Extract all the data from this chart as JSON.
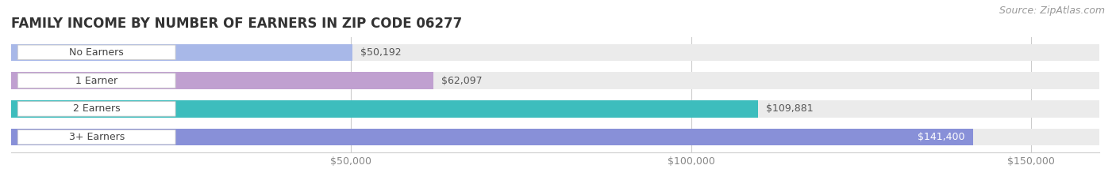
{
  "title": "FAMILY INCOME BY NUMBER OF EARNERS IN ZIP CODE 06277",
  "source": "Source: ZipAtlas.com",
  "categories": [
    "No Earners",
    "1 Earner",
    "2 Earners",
    "3+ Earners"
  ],
  "values": [
    50192,
    62097,
    109881,
    141400
  ],
  "bar_colors": [
    "#a8b8e8",
    "#c0a0d0",
    "#3dbdbd",
    "#8890d8"
  ],
  "bar_bg_color": "#ebebeb",
  "value_labels": [
    "$50,192",
    "$62,097",
    "$109,881",
    "$141,400"
  ],
  "xlim_max": 160000,
  "xticks": [
    50000,
    100000,
    150000
  ],
  "xtick_labels": [
    "$50,000",
    "$100,000",
    "$150,000"
  ],
  "background_color": "#ffffff",
  "title_fontsize": 12,
  "label_fontsize": 9,
  "tick_fontsize": 9,
  "source_fontsize": 9,
  "bar_height": 0.6,
  "value_label_inside_threshold": 130000
}
